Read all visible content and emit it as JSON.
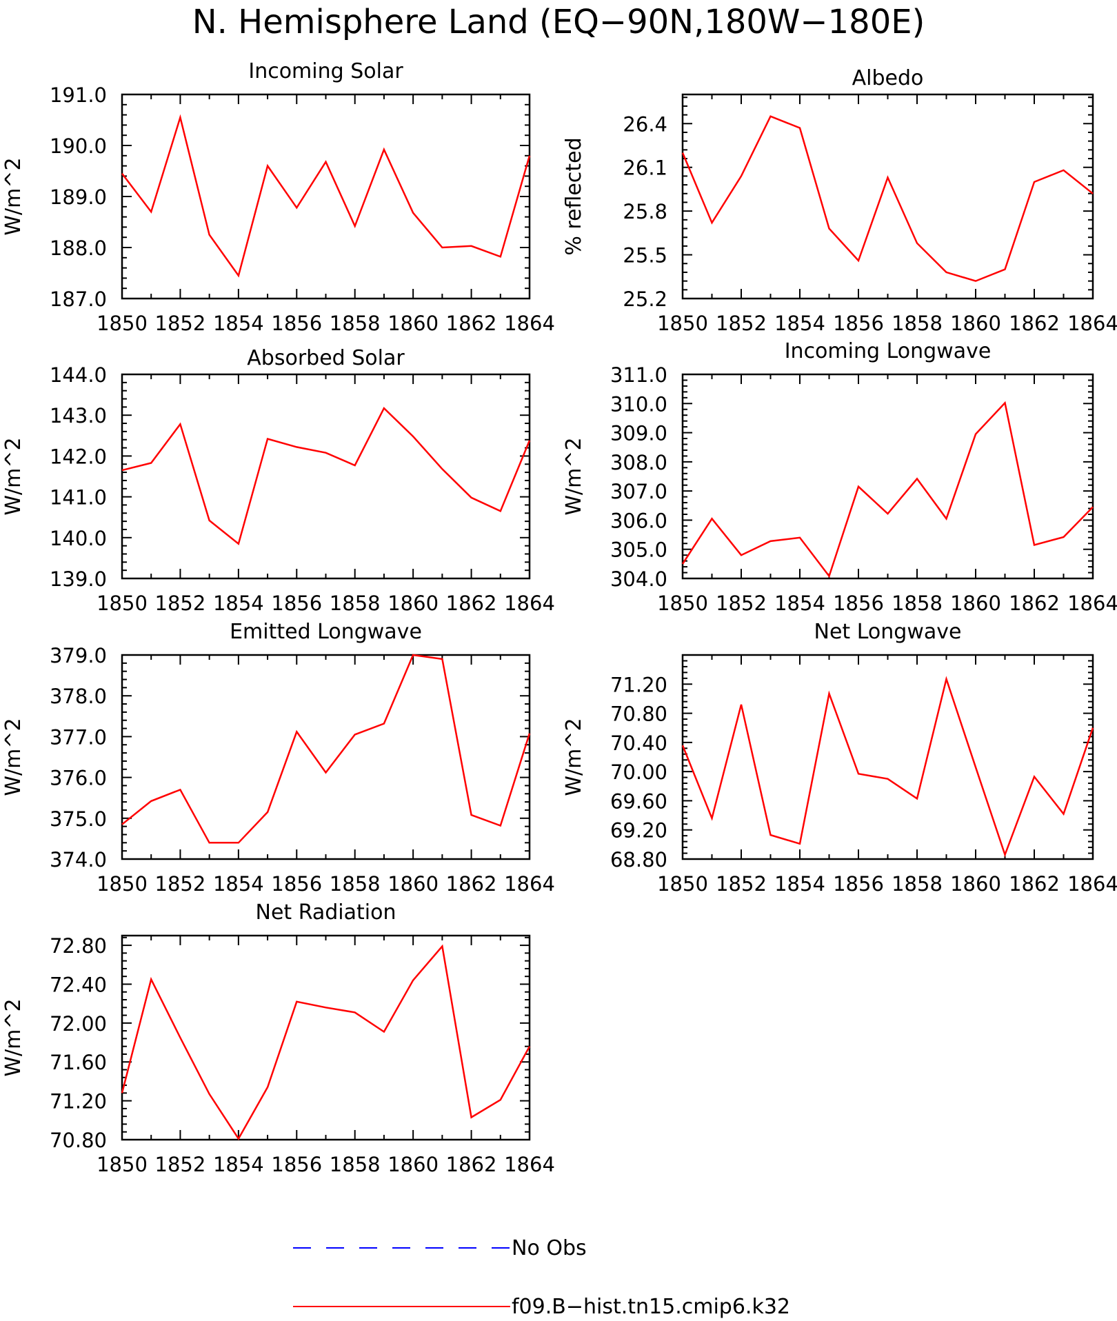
{
  "figure": {
    "title": "N. Hemisphere Land (EQ−90N,180W−180E)"
  },
  "legend": {
    "placement": "bottom-center",
    "entries": [
      {
        "label": "No Obs",
        "color": "#0000ff",
        "style": "dashed"
      },
      {
        "label": "f09.B−hist.tn15.cmip6.k32",
        "color": "#ff0000",
        "style": "solid"
      }
    ]
  },
  "chart_data": [
    {
      "type": "line",
      "title": "Incoming Solar",
      "xlabel": "",
      "ylabel": "W/m^2",
      "x": [
        1850,
        1851,
        1852,
        1853,
        1854,
        1855,
        1856,
        1857,
        1858,
        1859,
        1860,
        1861,
        1862,
        1863,
        1864
      ],
      "xlim": [
        1850,
        1864
      ],
      "xticks": [
        "1850",
        "1852",
        "1854",
        "1856",
        "1858",
        "1860",
        "1862",
        "1864"
      ],
      "ylim": [
        187.0,
        191.0
      ],
      "yticks": [
        "187.0",
        "188.0",
        "189.0",
        "190.0",
        "191.0"
      ],
      "grid": false,
      "series": [
        {
          "color": "#ff0000",
          "values": [
            189.45,
            188.7,
            190.55,
            188.25,
            187.45,
            189.6,
            188.78,
            189.68,
            188.42,
            189.92,
            188.68,
            188.0,
            188.03,
            187.82,
            189.8
          ]
        }
      ]
    },
    {
      "type": "line",
      "title": "Albedo",
      "xlabel": "",
      "ylabel": "% reflected",
      "x": [
        1850,
        1851,
        1852,
        1853,
        1854,
        1855,
        1856,
        1857,
        1858,
        1859,
        1860,
        1861,
        1862,
        1863,
        1864
      ],
      "xlim": [
        1850,
        1864
      ],
      "xticks": [
        "1850",
        "1852",
        "1854",
        "1856",
        "1858",
        "1860",
        "1862",
        "1864"
      ],
      "ylim": [
        25.2,
        26.6
      ],
      "yticks": [
        "25.2",
        "25.5",
        "25.8",
        "26.1",
        "26.4"
      ],
      "grid": false,
      "series": [
        {
          "color": "#ff0000",
          "values": [
            26.2,
            25.72,
            26.04,
            26.45,
            26.37,
            25.68,
            25.46,
            26.03,
            25.58,
            25.38,
            25.32,
            25.4,
            26.0,
            26.08,
            25.92
          ]
        }
      ]
    },
    {
      "type": "line",
      "title": "Absorbed Solar",
      "xlabel": "",
      "ylabel": "W/m^2",
      "x": [
        1850,
        1851,
        1852,
        1853,
        1854,
        1855,
        1856,
        1857,
        1858,
        1859,
        1860,
        1861,
        1862,
        1863,
        1864
      ],
      "xlim": [
        1850,
        1864
      ],
      "xticks": [
        "1850",
        "1852",
        "1854",
        "1856",
        "1858",
        "1860",
        "1862",
        "1864"
      ],
      "ylim": [
        139.0,
        144.0
      ],
      "yticks": [
        "139.0",
        "140.0",
        "141.0",
        "142.0",
        "143.0",
        "144.0"
      ],
      "grid": false,
      "series": [
        {
          "color": "#ff0000",
          "values": [
            141.65,
            141.83,
            142.78,
            140.42,
            139.85,
            142.42,
            142.22,
            142.08,
            141.77,
            143.17,
            142.48,
            141.68,
            140.98,
            140.65,
            142.38
          ]
        }
      ]
    },
    {
      "type": "line",
      "title": "Incoming Longwave",
      "xlabel": "",
      "ylabel": "W/m^2",
      "x": [
        1850,
        1851,
        1852,
        1853,
        1854,
        1855,
        1856,
        1857,
        1858,
        1859,
        1860,
        1861,
        1862,
        1863,
        1864
      ],
      "xlim": [
        1850,
        1864
      ],
      "xticks": [
        "1850",
        "1852",
        "1854",
        "1856",
        "1858",
        "1860",
        "1862",
        "1864"
      ],
      "ylim": [
        304.0,
        311.0
      ],
      "yticks": [
        "304.0",
        "305.0",
        "306.0",
        "307.0",
        "308.0",
        "309.0",
        "310.0",
        "311.0"
      ],
      "grid": false,
      "series": [
        {
          "color": "#ff0000",
          "values": [
            304.5,
            306.05,
            304.8,
            305.28,
            305.4,
            304.08,
            307.15,
            306.22,
            307.42,
            306.05,
            308.95,
            310.02,
            305.15,
            305.42,
            306.45
          ]
        }
      ]
    },
    {
      "type": "line",
      "title": "Emitted Longwave",
      "xlabel": "",
      "ylabel": "W/m^2",
      "x": [
        1850,
        1851,
        1852,
        1853,
        1854,
        1855,
        1856,
        1857,
        1858,
        1859,
        1860,
        1861,
        1862,
        1863,
        1864
      ],
      "xlim": [
        1850,
        1864
      ],
      "xticks": [
        "1850",
        "1852",
        "1854",
        "1856",
        "1858",
        "1860",
        "1862",
        "1864"
      ],
      "ylim": [
        374.0,
        379.0
      ],
      "yticks": [
        "374.0",
        "375.0",
        "376.0",
        "377.0",
        "378.0",
        "379.0"
      ],
      "grid": false,
      "series": [
        {
          "color": "#ff0000",
          "values": [
            374.85,
            375.42,
            375.7,
            374.4,
            374.4,
            375.15,
            377.12,
            376.12,
            377.05,
            377.32,
            379.0,
            378.9,
            375.08,
            374.82,
            377.08
          ]
        }
      ]
    },
    {
      "type": "line",
      "title": "Net Longwave",
      "xlabel": "",
      "ylabel": "W/m^2",
      "x": [
        1850,
        1851,
        1852,
        1853,
        1854,
        1855,
        1856,
        1857,
        1858,
        1859,
        1860,
        1861,
        1862,
        1863,
        1864
      ],
      "xlim": [
        1850,
        1864
      ],
      "xticks": [
        "1850",
        "1852",
        "1854",
        "1856",
        "1858",
        "1860",
        "1862",
        "1864"
      ],
      "ylim": [
        68.8,
        71.6
      ],
      "yticks": [
        "68.80",
        "69.20",
        "69.60",
        "70.00",
        "70.40",
        "70.80",
        "71.20"
      ],
      "grid": false,
      "series": [
        {
          "color": "#ff0000",
          "values": [
            70.36,
            69.36,
            70.92,
            69.13,
            69.01,
            71.07,
            69.97,
            69.9,
            69.63,
            71.27,
            70.06,
            68.86,
            69.93,
            69.42,
            70.6
          ]
        }
      ]
    },
    {
      "type": "line",
      "title": "Net Radiation",
      "xlabel": "",
      "ylabel": "W/m^2",
      "x": [
        1850,
        1851,
        1852,
        1853,
        1854,
        1855,
        1856,
        1857,
        1858,
        1859,
        1860,
        1861,
        1862,
        1863,
        1864
      ],
      "xlim": [
        1850,
        1864
      ],
      "xticks": [
        "1850",
        "1852",
        "1854",
        "1856",
        "1858",
        "1860",
        "1862",
        "1864"
      ],
      "ylim": [
        70.8,
        72.9
      ],
      "yticks": [
        "70.80",
        "71.20",
        "71.60",
        "72.00",
        "72.40",
        "72.80"
      ],
      "grid": false,
      "series": [
        {
          "color": "#ff0000",
          "values": [
            71.28,
            72.45,
            71.85,
            71.27,
            70.81,
            71.34,
            72.22,
            72.16,
            72.11,
            71.91,
            72.44,
            72.79,
            71.03,
            71.21,
            71.76
          ]
        }
      ]
    }
  ]
}
